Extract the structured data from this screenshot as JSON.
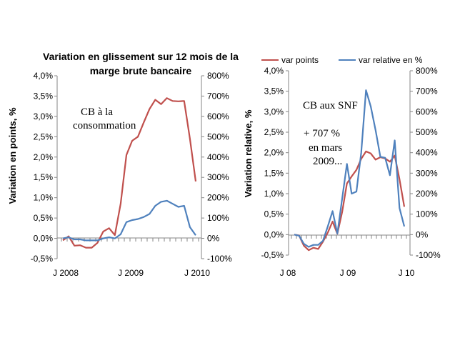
{
  "colors": {
    "red": "#C0504D",
    "blue": "#4F81BD",
    "axis": "#868686"
  },
  "chart_data": [
    {
      "type": "line",
      "title": "Variation en glissement sur 12 mois de la",
      "subtitle": "marge brute bancaire",
      "ylabel": "Variation en points, %",
      "ylim": [
        -0.005,
        0.04
      ],
      "y_ticks": [
        "-0,5%",
        "0,0%",
        "0,5%",
        "1,0%",
        "1,5%",
        "2,0%",
        "2,5%",
        "3,0%",
        "3,5%",
        "4,0%"
      ],
      "y2lim": [
        -100,
        800
      ],
      "y2_ticks": [
        "-100%",
        "0%",
        "100%",
        "200%",
        "300%",
        "400%",
        "500%",
        "600%",
        "700%",
        "800%"
      ],
      "x_labels": [
        "J 2008",
        "J 2009",
        "J 2010"
      ],
      "annotation": [
        "CB à la",
        "consommation"
      ],
      "series": [
        {
          "axis": "left",
          "color": "red",
          "values": [
            -0.0005,
            0.0005,
            -0.0018,
            -0.0017,
            -0.0023,
            -0.0023,
            -0.0011,
            0.0017,
            0.0025,
            0.0008,
            0.0085,
            0.0205,
            0.024,
            0.025,
            0.0285,
            0.0318,
            0.0341,
            0.033,
            0.0345,
            0.0338,
            0.0337,
            0.0338,
            0.0245,
            0.014
          ]
        },
        {
          "axis": "right",
          "color": "blue",
          "values": [
            0,
            5,
            -5,
            -5,
            -10,
            -10,
            -10,
            0,
            5,
            0,
            20,
            80,
            90,
            95,
            105,
            120,
            160,
            180,
            185,
            170,
            155,
            160,
            55,
            15
          ]
        }
      ]
    },
    {
      "type": "line",
      "ylabel": "Variation relative, %",
      "ylim": [
        -0.005,
        0.04
      ],
      "y_ticks": [
        "-0,5%",
        "0,0%",
        "0,5%",
        "1,0%",
        "1,5%",
        "2,0%",
        "2,5%",
        "3,0%",
        "3,5%",
        "4,0%"
      ],
      "y2lim": [
        -100,
        800
      ],
      "y2_ticks": [
        "-100%",
        "0%",
        "100%",
        "200%",
        "300%",
        "400%",
        "500%",
        "600%",
        "700%",
        "800%"
      ],
      "x_labels": [
        "J 08",
        "J 09",
        "J 10"
      ],
      "annotation_title": "CB aux SNF",
      "annotation": [
        "+ 707 %",
        "en mars",
        "2009..."
      ],
      "legend": [
        {
          "label": "var points",
          "color": "red"
        },
        {
          "label": "var relative en %",
          "color": "blue"
        }
      ],
      "series": [
        {
          "axis": "left",
          "color": "red",
          "values": [
            0,
            -0.0002,
            -0.0027,
            -0.0038,
            -0.0032,
            -0.0035,
            -0.0017,
            0.0005,
            0.0032,
            0.0002,
            0.0055,
            0.0125,
            0.0142,
            0.0158,
            0.0185,
            0.0203,
            0.0198,
            0.0183,
            0.0189,
            0.0186,
            0.0178,
            0.0193,
            0.0135,
            0.0068
          ]
        },
        {
          "axis": "right",
          "color": "blue",
          "values": [
            0,
            -5,
            -45,
            -60,
            -50,
            -50,
            -30,
            40,
            115,
            5,
            175,
            345,
            200,
            210,
            400,
            705,
            625,
            510,
            380,
            375,
            290,
            460,
            130,
            40
          ]
        }
      ]
    }
  ]
}
